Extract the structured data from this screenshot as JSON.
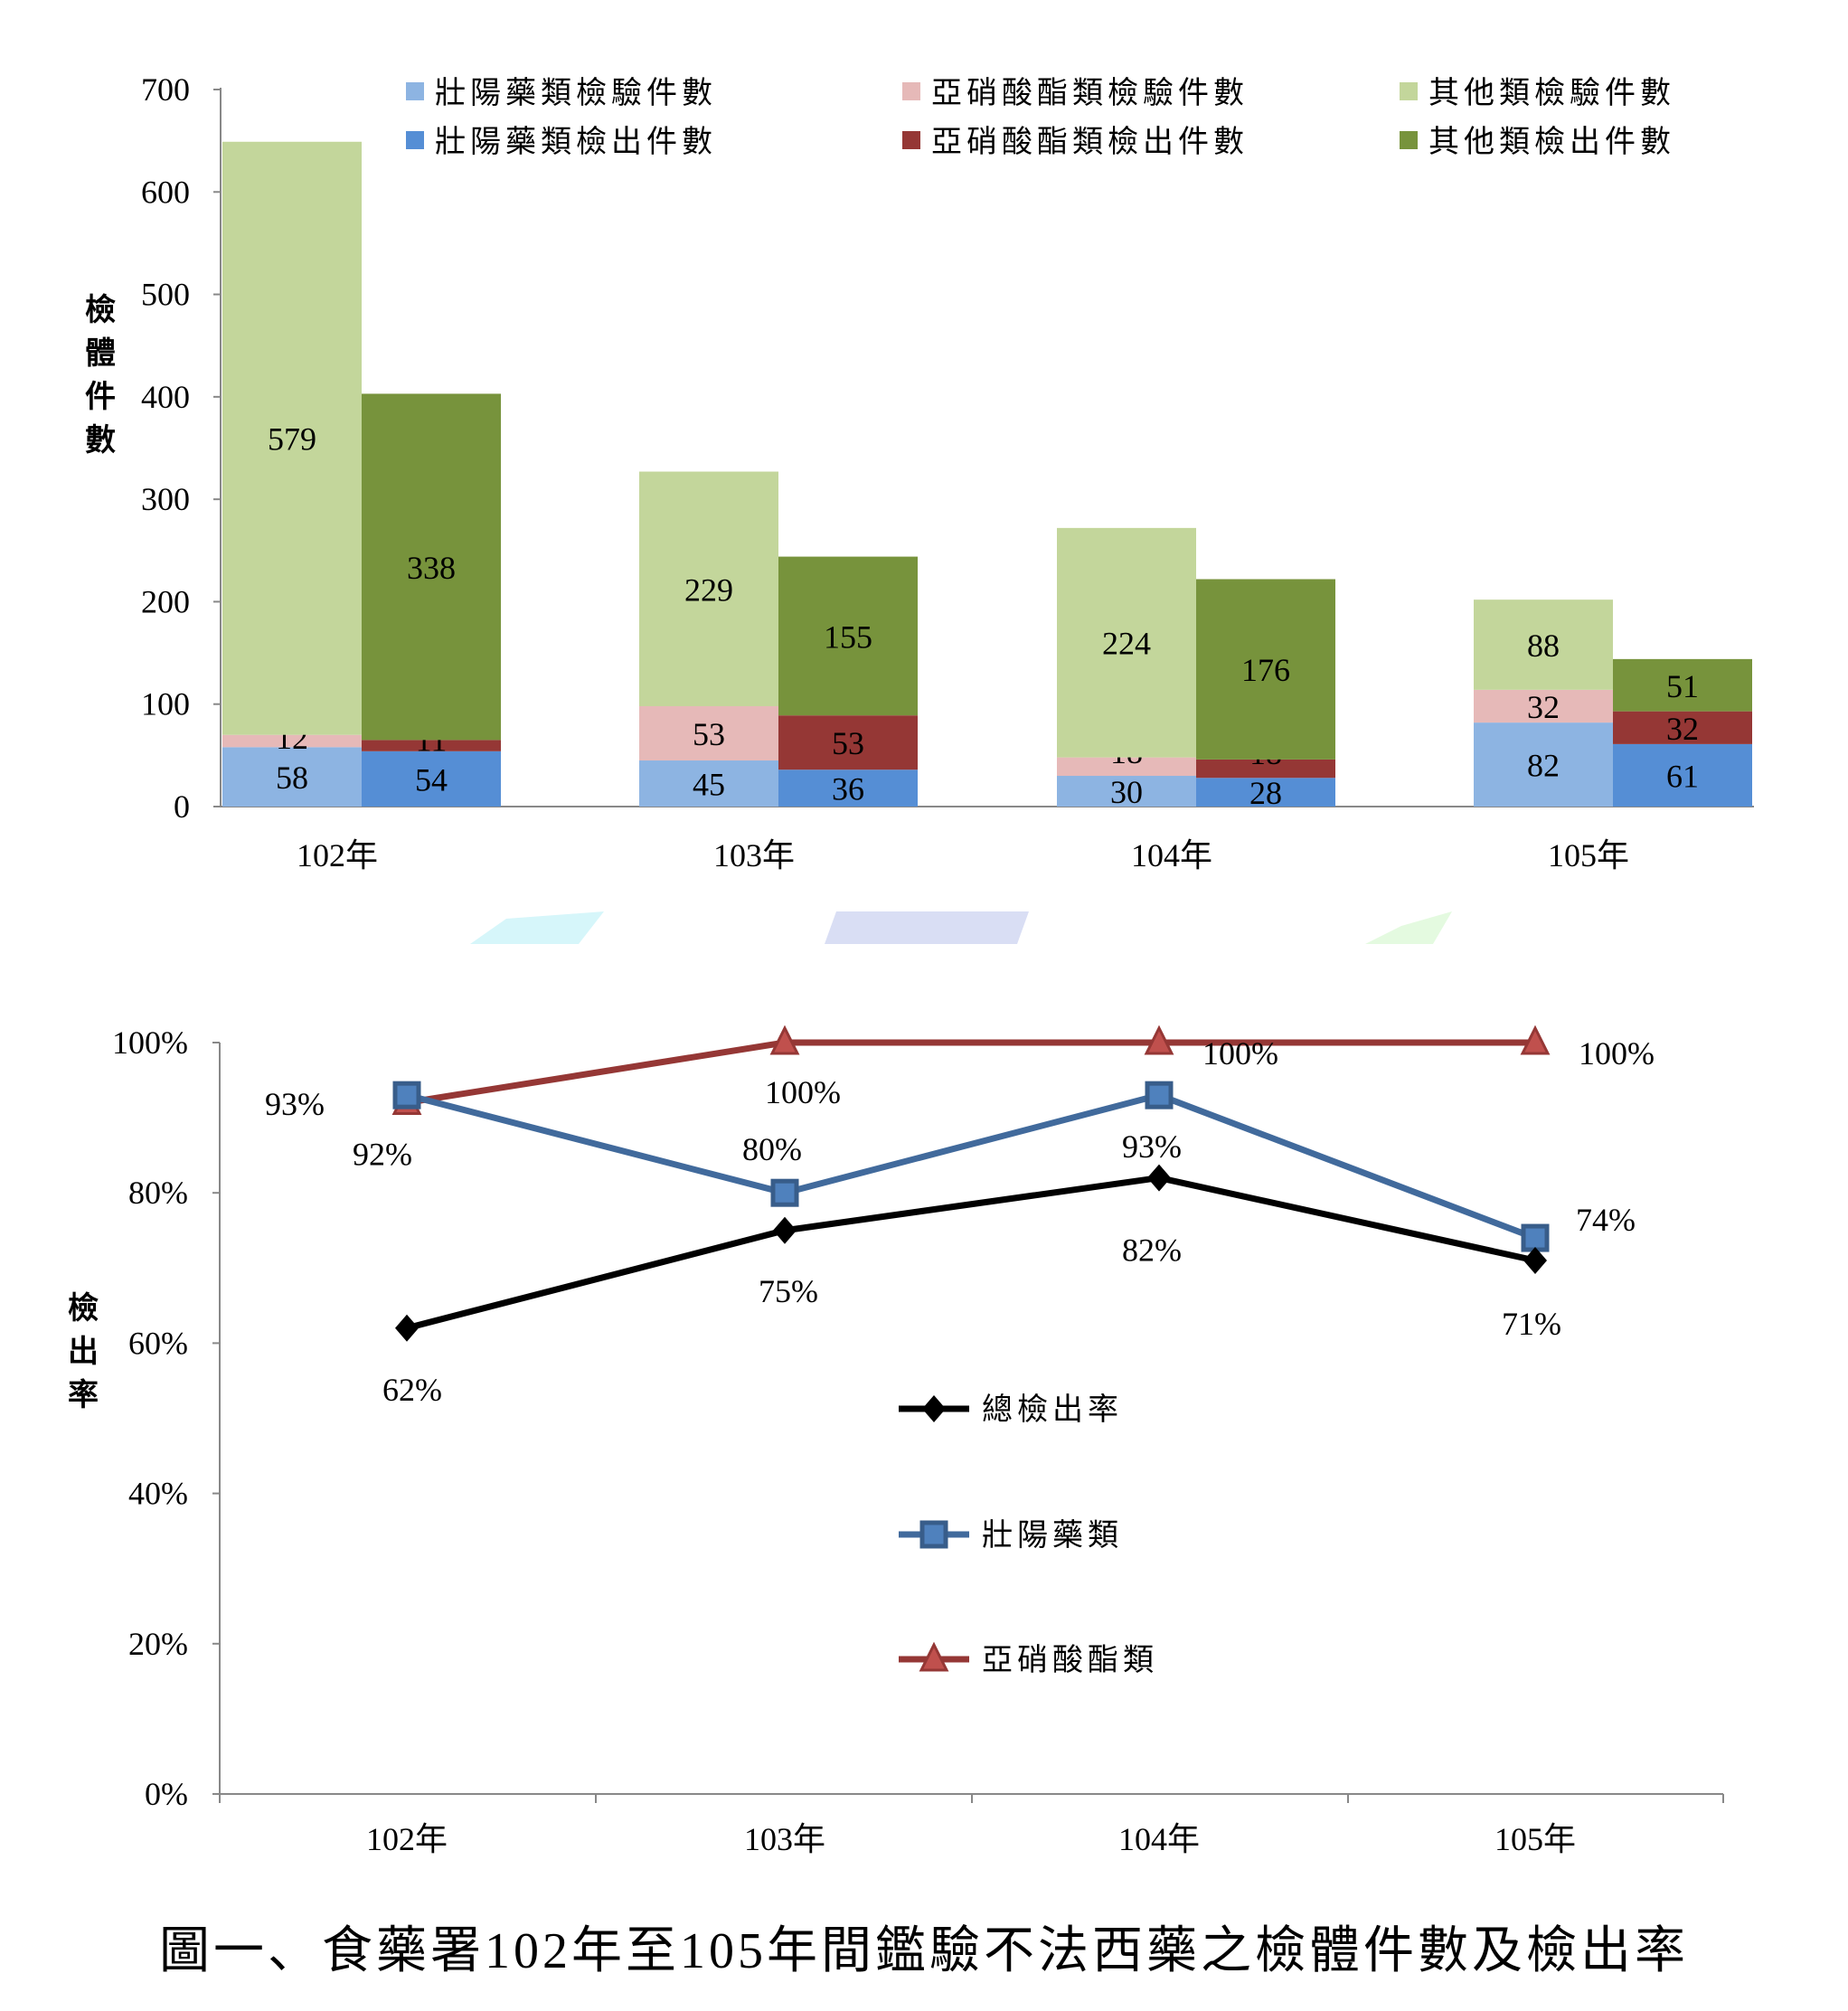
{
  "chart_data": [
    {
      "type": "bar",
      "stacked": true,
      "ylabel": "檢體件數",
      "ylim": [
        0,
        700
      ],
      "yticks": [
        0,
        100,
        200,
        300,
        400,
        500,
        600,
        700
      ],
      "categories": [
        "102年",
        "103年",
        "104年",
        "105年"
      ],
      "legend_position": "top",
      "grid": false,
      "groups": [
        {
          "series": [
            {
              "name": "壯陽藥類檢驗件數",
              "color": "#8db4e2",
              "values": [
                58,
                45,
                30,
                82
              ]
            },
            {
              "name": "亞硝酸酯類檢驗件數",
              "color": "#e6b9b8",
              "values": [
                12,
                53,
                18,
                32
              ]
            },
            {
              "name": "其他類檢驗件數",
              "color": "#c3d69b",
              "values": [
                579,
                229,
                224,
                88
              ]
            }
          ]
        },
        {
          "series": [
            {
              "name": "壯陽藥類檢出件數",
              "color": "#558ed5",
              "values": [
                54,
                36,
                28,
                61
              ]
            },
            {
              "name": "亞硝酸酯類檢出件數",
              "color": "#953735",
              "values": [
                11,
                53,
                18,
                32
              ]
            },
            {
              "name": "其他類檢出件數",
              "color": "#77933c",
              "values": [
                338,
                155,
                176,
                51
              ]
            }
          ]
        }
      ]
    },
    {
      "type": "line",
      "ylabel": "檢出率",
      "ylim": [
        0,
        100
      ],
      "yticks": [
        "0%",
        "20%",
        "40%",
        "60%",
        "80%",
        "100%"
      ],
      "categories": [
        "102年",
        "103年",
        "104年",
        "105年"
      ],
      "legend_position": "center",
      "grid": false,
      "series": [
        {
          "name": "總檢出率",
          "color": "#000000",
          "marker": "diamond",
          "values": [
            62,
            75,
            82,
            71
          ],
          "labels": [
            "62%",
            "75%",
            "82%",
            "71%"
          ]
        },
        {
          "name": "壯陽藥類",
          "color": "#4f81bd",
          "marker": "square",
          "values": [
            93,
            80,
            93,
            74
          ],
          "labels": [
            "93%",
            "80%",
            "93%",
            "74%"
          ]
        },
        {
          "name": "亞硝酸酯類",
          "color": "#c0504d",
          "marker": "triangle",
          "values": [
            92,
            100,
            100,
            100
          ],
          "labels": [
            "92%",
            "100%",
            "100%",
            "100%"
          ]
        }
      ]
    }
  ],
  "caption": "圖一、食藥署102年至105年間鑑驗不法西藥之檢體件數及檢出率"
}
